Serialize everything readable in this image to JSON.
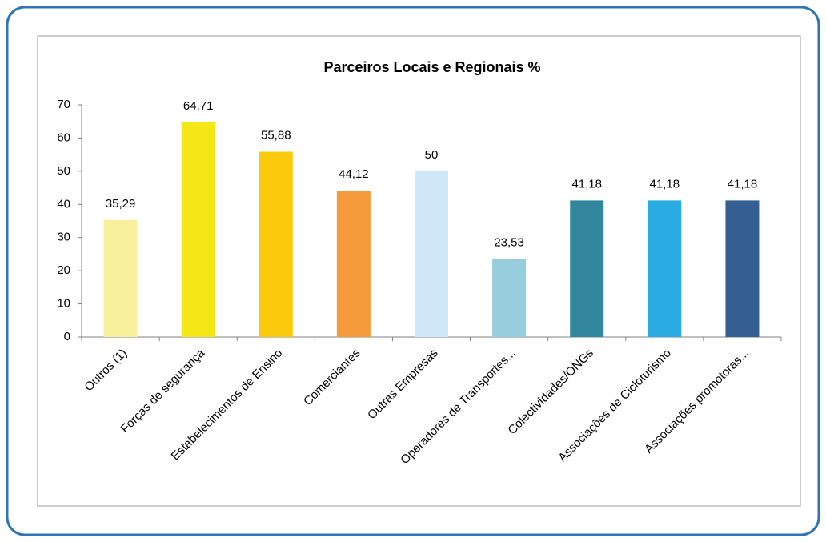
{
  "chart_data": {
    "type": "bar",
    "title": "Parceiros Locais e Regionais %",
    "categories": [
      "Outros (1)",
      "Forças de segurança",
      "Estabelecimentos de Ensino",
      "Comerciantes",
      "Outras Empresas",
      "Operadores de Transportes...",
      "Colectividades/ONGs",
      "Associações de Cicloturismo",
      "Associações promotoras..."
    ],
    "values": [
      35.29,
      64.71,
      55.88,
      44.12,
      50,
      23.53,
      41.18,
      41.18,
      41.18
    ],
    "value_labels": [
      "35,29",
      "64,71",
      "55,88",
      "44,12",
      "50",
      "23,53",
      "41,18",
      "41,18",
      "41,18"
    ],
    "colors": [
      "#f9f09b",
      "#f5e616",
      "#fcca0c",
      "#f59b3b",
      "#cfe8f8",
      "#97cedc",
      "#32879c",
      "#2aace3",
      "#355f92"
    ],
    "ylim": [
      0,
      70
    ],
    "yticks": [
      0,
      10,
      20,
      30,
      40,
      50,
      60,
      70
    ],
    "grid": false
  }
}
